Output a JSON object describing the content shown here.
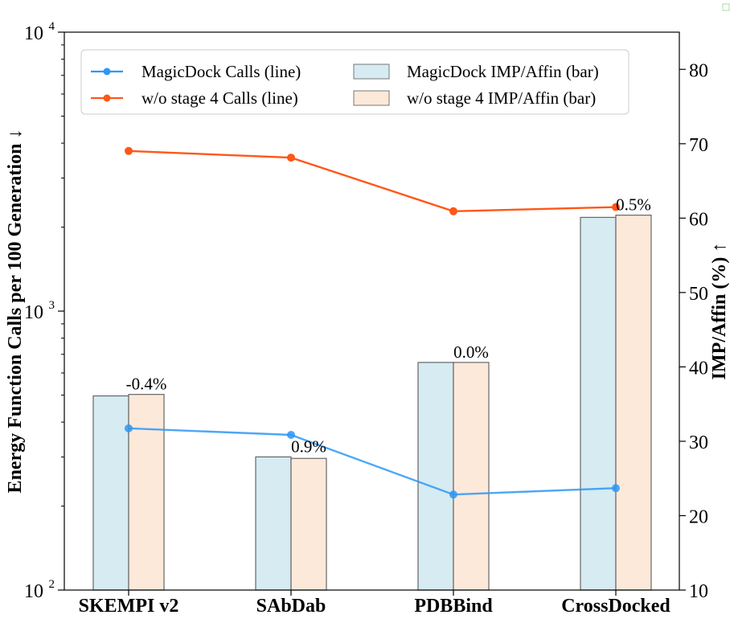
{
  "chart_data": {
    "type": "bar+line",
    "categories": [
      "SKEMPI v2",
      "SAbDab",
      "PDBBind",
      "CrossDocked"
    ],
    "left_axis": {
      "label": "Energy Function Calls per 100 Generation ↓",
      "scale": "log",
      "range": [
        100,
        10000
      ],
      "tick_labels": [
        "10",
        "10",
        "10"
      ],
      "tick_exponents": [
        "2",
        "3",
        "4"
      ],
      "tick_values": [
        100,
        1000,
        10000
      ]
    },
    "right_axis": {
      "label": "IMP/Affin (%) ↑",
      "range": [
        10,
        85
      ],
      "tick_values": [
        10,
        20,
        30,
        40,
        50,
        60,
        70,
        80
      ],
      "tick_labels": [
        "10",
        "20",
        "30",
        "40",
        "50",
        "60",
        "70",
        "80"
      ]
    },
    "lines": [
      {
        "name": "MagicDock Calls (line)",
        "color": "#2e97f5",
        "values": [
          380,
          360,
          220,
          232
        ]
      },
      {
        "name": "w/o stage 4 Calls (line)",
        "color": "#ff5716",
        "values": [
          3750,
          3550,
          2280,
          2360
        ]
      }
    ],
    "bars": [
      {
        "name": "MagicDock IMP/Affin (bar)",
        "fill": "#d6ebf2",
        "values": [
          36.1,
          27.9,
          40.6,
          60.1
        ]
      },
      {
        "name": "w/o stage 4 IMP/Affin (bar)",
        "fill": "#fde9da",
        "values": [
          36.3,
          27.7,
          40.6,
          60.4
        ]
      }
    ],
    "bar_labels": [
      "-0.4%",
      "0.9%",
      "0.0%",
      "0.5%"
    ],
    "legend_position": "top"
  }
}
